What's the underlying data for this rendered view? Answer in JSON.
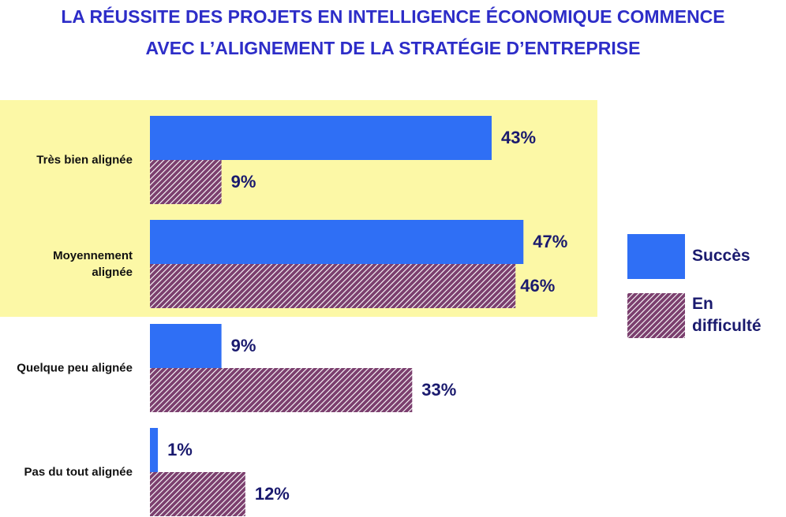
{
  "chart_data": {
    "type": "bar",
    "orientation": "horizontal",
    "title": [
      "LA RÉUSSITE DES PROJETS EN INTELLIGENCE ÉCONOMIQUE COMMENCE",
      "AVEC L’ALIGNEMENT DE LA STRATÉGIE D’ENTREPRISE"
    ],
    "categories": [
      "Très bien alignée",
      "Moyennement alignée",
      "Quelque peu alignée",
      "Pas du tout alignée"
    ],
    "series": [
      {
        "name": "Succès",
        "color": "#2f6ff5",
        "values": [
          43,
          47,
          9,
          1
        ],
        "value_labels": [
          "43%",
          "47%",
          "9%",
          "1%"
        ]
      },
      {
        "name": "En difficulté",
        "color": "#7b3f6e",
        "hatched": true,
        "values": [
          9,
          46,
          33,
          12
        ],
        "value_labels": [
          "9%",
          "46%",
          "33%",
          "12%"
        ]
      }
    ],
    "legend": "right"
  }
}
